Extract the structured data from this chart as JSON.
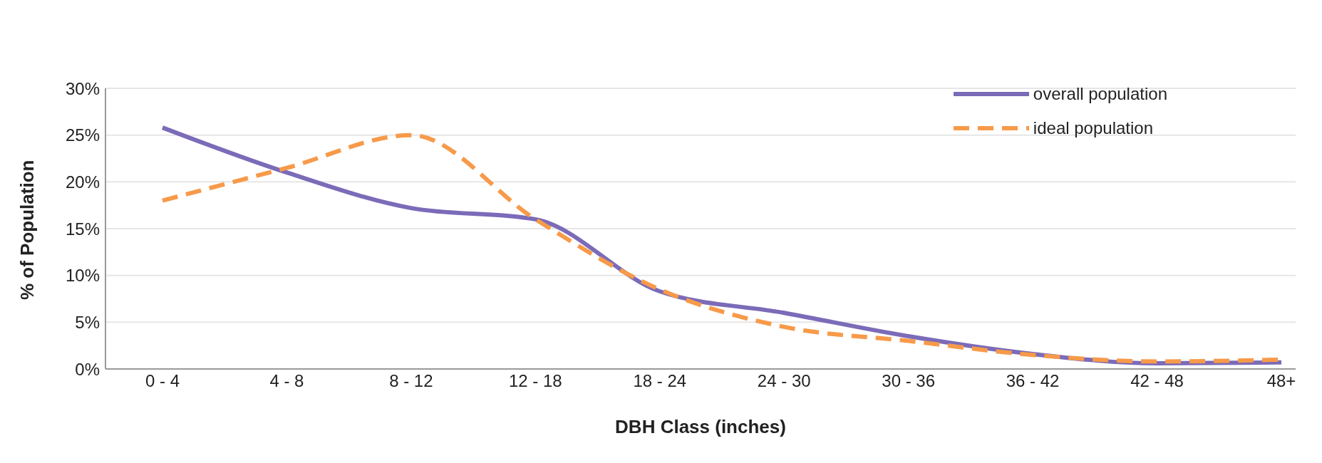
{
  "chart_data": {
    "type": "line",
    "xlabel": "DBH Class (inches)",
    "ylabel": "% of Population",
    "categories": [
      "0 - 4",
      "4 - 8",
      "8 - 12",
      "12 - 18",
      "18 - 24",
      "24 - 30",
      "30 - 36",
      "36 - 42",
      "42 - 48",
      "48+"
    ],
    "series": [
      {
        "name": "overall population",
        "color": "#7b6bb8",
        "line_style": "solid",
        "values": [
          25.8,
          21.0,
          17.2,
          16.0,
          8.3,
          6.0,
          3.5,
          1.6,
          0.6,
          0.7
        ]
      },
      {
        "name": "ideal population",
        "color": "#f79a4a",
        "line_style": "dashed",
        "values": [
          18.0,
          21.5,
          25.0,
          16.0,
          8.5,
          4.5,
          3.0,
          1.5,
          0.8,
          1.0
        ]
      }
    ],
    "ylim": [
      0,
      30
    ],
    "yticks": [
      {
        "value": 0,
        "label": "0%"
      },
      {
        "value": 5,
        "label": "5%"
      },
      {
        "value": 10,
        "label": "10%"
      },
      {
        "value": 15,
        "label": "15%"
      },
      {
        "value": 20,
        "label": "20%"
      },
      {
        "value": 25,
        "label": "25%"
      },
      {
        "value": 30,
        "label": "30%"
      }
    ],
    "grid": "y",
    "legend": "top right",
    "marker": "none"
  }
}
